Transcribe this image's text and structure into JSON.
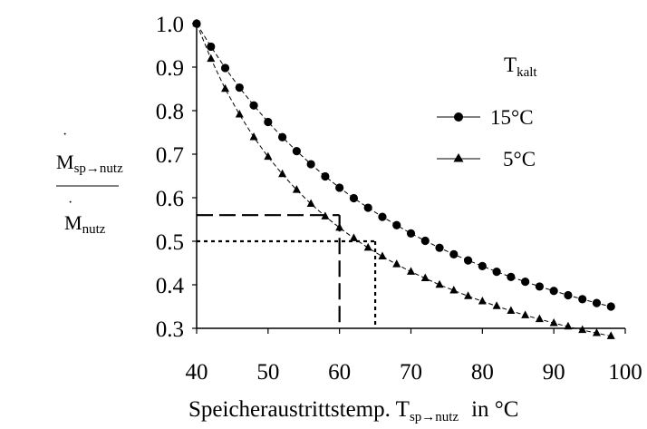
{
  "chart_data": {
    "type": "line",
    "xlabel_main": "Speicheraustrittstemp. T",
    "xlabel_sub": "sp→nutz",
    "xlabel_unit": "in °C",
    "ylabel_num_main": "M",
    "ylabel_num_sub": "sp→nutz",
    "ylabel_den_main": "M",
    "ylabel_den_sub": "nutz",
    "xlim": [
      40,
      100
    ],
    "ylim": [
      0.3,
      1.0
    ],
    "x_ticks": [
      "40",
      "50",
      "60",
      "70",
      "80",
      "90",
      "100"
    ],
    "y_ticks": [
      "1.0",
      "0.9",
      "0.8",
      "0.7",
      "0.6",
      "0.5",
      "0.4",
      "0.3"
    ],
    "legend": {
      "title_main": "T",
      "title_sub": "kalt",
      "position": "top-right",
      "entries": [
        "15°C",
        "5°C"
      ]
    },
    "series": [
      {
        "name": "15°C",
        "marker": "circle",
        "x": [
          40,
          42,
          44,
          46,
          48,
          50,
          52,
          54,
          56,
          58,
          60,
          62,
          64,
          66,
          68,
          70,
          72,
          74,
          76,
          78,
          80,
          82,
          84,
          86,
          88,
          90,
          92,
          94,
          96,
          98
        ],
        "y": [
          1.0,
          0.947,
          0.898,
          0.853,
          0.812,
          0.774,
          0.739,
          0.707,
          0.677,
          0.649,
          0.623,
          0.599,
          0.577,
          0.556,
          0.537,
          0.518,
          0.501,
          0.485,
          0.47,
          0.456,
          0.443,
          0.43,
          0.418,
          0.407,
          0.396,
          0.386,
          0.376,
          0.367,
          0.358,
          0.35
        ]
      },
      {
        "name": "5°C",
        "marker": "triangle",
        "x": [
          40,
          42,
          44,
          46,
          48,
          50,
          52,
          54,
          56,
          58,
          60,
          62,
          64,
          66,
          68,
          70,
          72,
          74,
          76,
          78,
          80,
          82,
          84,
          86,
          88,
          90,
          92,
          94,
          96,
          98
        ],
        "y": [
          1.0,
          0.919,
          0.85,
          0.791,
          0.739,
          0.694,
          0.654,
          0.618,
          0.586,
          0.557,
          0.531,
          0.507,
          0.485,
          0.465,
          0.447,
          0.43,
          0.415,
          0.4,
          0.387,
          0.374,
          0.362,
          0.351,
          0.34,
          0.33,
          0.321,
          0.312,
          0.304,
          0.296,
          0.289,
          0.282
        ]
      }
    ],
    "reference_lines": [
      {
        "style": "dashed",
        "x": 60,
        "y": 0.56
      },
      {
        "style": "dotted",
        "x": 65,
        "y": 0.5
      }
    ]
  }
}
